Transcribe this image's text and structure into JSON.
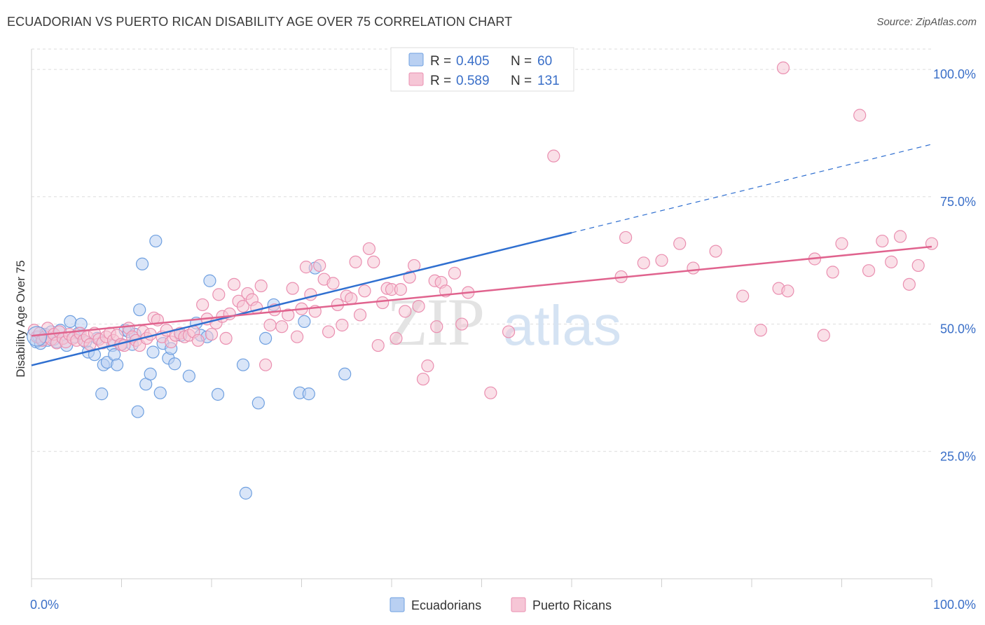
{
  "chart_data": {
    "type": "scatter",
    "title": "ECUADORIAN VS PUERTO RICAN DISABILITY AGE OVER 75 CORRELATION CHART",
    "source": "Source: ZipAtlas.com",
    "xlabel": "",
    "ylabel": "Disability Age Over 75",
    "xlim": [
      0,
      100
    ],
    "ylim": [
      0,
      104
    ],
    "x_tick_labels": [
      "0.0%",
      "100.0%"
    ],
    "y_ticks": [
      25,
      50,
      75,
      100
    ],
    "y_tick_labels": [
      "25.0%",
      "50.0%",
      "75.0%",
      "100.0%"
    ],
    "grid": true,
    "legend_position": "top-center",
    "watermark": "ZIPatlas",
    "stats": [
      {
        "r_label": "R =",
        "r_value": "0.405",
        "n_label": "N =",
        "n_value": "60"
      },
      {
        "r_label": "R =",
        "r_value": "0.589",
        "n_label": "N =",
        "n_value": "131"
      }
    ],
    "series": [
      {
        "name": "Ecuadorians",
        "color": "#6fa0e0",
        "fill": "#b9d0f2",
        "line_color": "#2f6fd0",
        "trend": {
          "x0": 0,
          "y0": 41.9,
          "x1": 100,
          "y1": 85.3,
          "solid_until": 60
        },
        "points": [
          [
            0.5,
            46.5
          ],
          [
            0.8,
            47.5
          ],
          [
            1.0,
            46.2
          ],
          [
            1.2,
            47.0
          ],
          [
            1.5,
            48.0
          ],
          [
            1.8,
            46.8
          ],
          [
            2.2,
            48.5
          ],
          [
            2.5,
            47.0
          ],
          [
            2.8,
            46.5
          ],
          [
            3.2,
            48.8
          ],
          [
            3.5,
            47.2
          ],
          [
            3.9,
            45.8
          ],
          [
            4.3,
            50.5
          ],
          [
            4.8,
            47.5
          ],
          [
            5.2,
            48.2
          ],
          [
            5.5,
            50.0
          ],
          [
            6.0,
            46.5
          ],
          [
            6.3,
            44.5
          ],
          [
            7.0,
            44.0
          ],
          [
            7.3,
            47.2
          ],
          [
            7.8,
            36.3
          ],
          [
            8.0,
            42.0
          ],
          [
            8.4,
            42.5
          ],
          [
            9.0,
            45.8
          ],
          [
            9.2,
            44.0
          ],
          [
            9.5,
            42.0
          ],
          [
            10.0,
            46.0
          ],
          [
            10.4,
            48.8
          ],
          [
            10.8,
            48.5
          ],
          [
            11.2,
            46.0
          ],
          [
            11.5,
            48.0
          ],
          [
            11.8,
            32.8
          ],
          [
            12.0,
            52.8
          ],
          [
            12.3,
            61.8
          ],
          [
            12.7,
            38.2
          ],
          [
            13.2,
            40.2
          ],
          [
            13.5,
            44.5
          ],
          [
            13.8,
            66.3
          ],
          [
            14.3,
            36.5
          ],
          [
            14.6,
            46.2
          ],
          [
            15.2,
            43.3
          ],
          [
            15.5,
            45.2
          ],
          [
            15.9,
            42.2
          ],
          [
            16.6,
            47.8
          ],
          [
            17.5,
            39.8
          ],
          [
            18.3,
            50.2
          ],
          [
            18.8,
            47.8
          ],
          [
            19.5,
            47.5
          ],
          [
            19.8,
            58.5
          ],
          [
            20.7,
            36.2
          ],
          [
            23.5,
            42.0
          ],
          [
            23.8,
            16.8
          ],
          [
            25.2,
            34.5
          ],
          [
            26.0,
            47.2
          ],
          [
            26.9,
            53.8
          ],
          [
            29.8,
            36.5
          ],
          [
            30.3,
            50.5
          ],
          [
            30.8,
            36.3
          ],
          [
            31.5,
            61.0
          ],
          [
            34.8,
            40.2
          ]
        ]
      },
      {
        "name": "Puerto Ricans",
        "color": "#ea8fb0",
        "fill": "#f6c6d6",
        "line_color": "#e0638e",
        "trend": {
          "x0": 0,
          "y0": 47.7,
          "x1": 100,
          "y1": 65.2
        },
        "points": [
          [
            0.3,
            48.8
          ],
          [
            0.6,
            47.5
          ],
          [
            0.9,
            48.2
          ],
          [
            1.2,
            46.8
          ],
          [
            1.5,
            47.5
          ],
          [
            1.8,
            49.2
          ],
          [
            2.2,
            47.0
          ],
          [
            2.5,
            48.0
          ],
          [
            2.8,
            46.3
          ],
          [
            3.1,
            48.5
          ],
          [
            3.5,
            47.2
          ],
          [
            3.8,
            46.5
          ],
          [
            4.2,
            48.0
          ],
          [
            4.6,
            47.2
          ],
          [
            5.0,
            46.8
          ],
          [
            5.4,
            48.2
          ],
          [
            5.8,
            46.8
          ],
          [
            6.2,
            47.5
          ],
          [
            6.5,
            46.0
          ],
          [
            7.0,
            48.2
          ],
          [
            7.5,
            47.0
          ],
          [
            7.9,
            46.3
          ],
          [
            8.3,
            47.5
          ],
          [
            8.7,
            48.2
          ],
          [
            9.1,
            46.8
          ],
          [
            9.5,
            47.8
          ],
          [
            9.9,
            46.0
          ],
          [
            10.3,
            45.8
          ],
          [
            10.8,
            49.2
          ],
          [
            11.2,
            47.5
          ],
          [
            11.6,
            46.8
          ],
          [
            12.0,
            45.8
          ],
          [
            12.4,
            48.5
          ],
          [
            12.8,
            47.2
          ],
          [
            13.2,
            48.0
          ],
          [
            13.6,
            51.2
          ],
          [
            14.0,
            50.8
          ],
          [
            14.5,
            47.5
          ],
          [
            15.0,
            48.8
          ],
          [
            15.5,
            46.5
          ],
          [
            16.0,
            47.8
          ],
          [
            16.5,
            48.2
          ],
          [
            17.0,
            47.5
          ],
          [
            17.5,
            47.8
          ],
          [
            18.0,
            48.5
          ],
          [
            18.5,
            46.8
          ],
          [
            19.0,
            53.8
          ],
          [
            19.5,
            51.0
          ],
          [
            20.0,
            48.0
          ],
          [
            20.5,
            50.2
          ],
          [
            20.8,
            55.8
          ],
          [
            21.2,
            51.5
          ],
          [
            21.6,
            47.2
          ],
          [
            22.0,
            52.0
          ],
          [
            22.5,
            57.8
          ],
          [
            23.0,
            54.5
          ],
          [
            23.5,
            53.5
          ],
          [
            24.0,
            56.0
          ],
          [
            24.5,
            54.8
          ],
          [
            25.0,
            53.2
          ],
          [
            25.5,
            57.5
          ],
          [
            26.0,
            42.0
          ],
          [
            26.5,
            49.8
          ],
          [
            27.0,
            52.8
          ],
          [
            27.8,
            49.5
          ],
          [
            28.5,
            51.8
          ],
          [
            29.0,
            57.0
          ],
          [
            29.5,
            47.5
          ],
          [
            30.0,
            53.0
          ],
          [
            30.5,
            61.2
          ],
          [
            31.0,
            55.8
          ],
          [
            31.5,
            52.5
          ],
          [
            32.0,
            61.5
          ],
          [
            32.5,
            58.8
          ],
          [
            33.0,
            48.5
          ],
          [
            33.5,
            58.0
          ],
          [
            34.0,
            53.8
          ],
          [
            34.5,
            49.8
          ],
          [
            35.0,
            55.5
          ],
          [
            35.5,
            55.0
          ],
          [
            36.0,
            62.2
          ],
          [
            36.5,
            51.8
          ],
          [
            37.0,
            56.5
          ],
          [
            37.5,
            64.8
          ],
          [
            38.0,
            62.2
          ],
          [
            38.5,
            45.8
          ],
          [
            39.0,
            54.2
          ],
          [
            39.5,
            57.0
          ],
          [
            40.0,
            56.8
          ],
          [
            40.5,
            47.2
          ],
          [
            41.0,
            56.8
          ],
          [
            41.5,
            52.5
          ],
          [
            42.0,
            59.2
          ],
          [
            42.5,
            61.5
          ],
          [
            43.0,
            53.5
          ],
          [
            43.5,
            39.2
          ],
          [
            44.0,
            41.8
          ],
          [
            44.8,
            58.5
          ],
          [
            45.0,
            49.5
          ],
          [
            45.5,
            58.2
          ],
          [
            46.0,
            56.5
          ],
          [
            47.0,
            60.0
          ],
          [
            47.8,
            50.0
          ],
          [
            48.5,
            56.2
          ],
          [
            51.0,
            36.5
          ],
          [
            53.0,
            48.5
          ],
          [
            58.0,
            83.0
          ],
          [
            65.5,
            59.3
          ],
          [
            66.0,
            67.0
          ],
          [
            68.0,
            62.0
          ],
          [
            70.0,
            62.5
          ],
          [
            72.0,
            65.8
          ],
          [
            73.5,
            61.0
          ],
          [
            76.0,
            64.3
          ],
          [
            79.0,
            55.5
          ],
          [
            81.0,
            48.8
          ],
          [
            83.0,
            57.0
          ],
          [
            84.0,
            56.5
          ],
          [
            87.0,
            62.8
          ],
          [
            88.0,
            47.8
          ],
          [
            89.0,
            60.2
          ],
          [
            90.0,
            65.8
          ],
          [
            92.0,
            91.0
          ],
          [
            93.0,
            60.5
          ],
          [
            94.5,
            66.3
          ],
          [
            95.5,
            62.2
          ],
          [
            96.5,
            67.2
          ],
          [
            97.5,
            57.8
          ],
          [
            98.5,
            61.5
          ],
          [
            100.0,
            65.8
          ],
          [
            83.5,
            100.3
          ]
        ]
      }
    ]
  }
}
